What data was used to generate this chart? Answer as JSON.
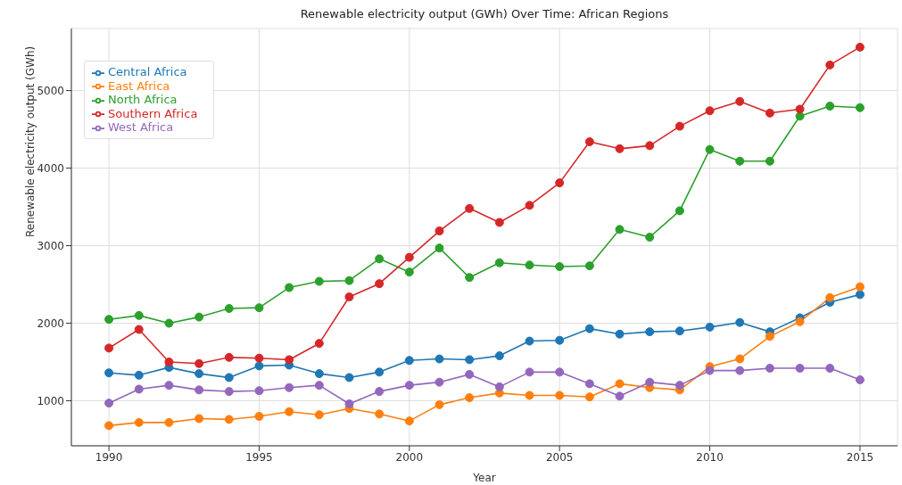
{
  "chart_data": {
    "type": "line",
    "title": "Renewable electricity output (GWh)  Over Time: African Regions",
    "xlabel": "Year",
    "ylabel": "Renewable electricity output (GWh)",
    "x": [
      1990,
      1991,
      1992,
      1993,
      1994,
      1995,
      1996,
      1997,
      1998,
      1999,
      2000,
      2001,
      2002,
      2003,
      2004,
      2005,
      2006,
      2007,
      2008,
      2009,
      2010,
      2011,
      2012,
      2013,
      2014,
      2015
    ],
    "series": [
      {
        "name": "Central Africa",
        "color": "#1f77b4",
        "values": [
          1360,
          1330,
          1430,
          1350,
          1300,
          1450,
          1460,
          1350,
          1300,
          1370,
          1520,
          1540,
          1530,
          1580,
          1770,
          1780,
          1930,
          1860,
          1890,
          1900,
          1950,
          2010,
          1890,
          2070,
          2270,
          2370
        ]
      },
      {
        "name": "East Africa",
        "color": "#ff7f0e",
        "values": [
          680,
          720,
          720,
          770,
          760,
          800,
          860,
          820,
          900,
          830,
          740,
          950,
          1040,
          1100,
          1070,
          1070,
          1050,
          1220,
          1170,
          1140,
          1440,
          1540,
          1830,
          2020,
          2330,
          2470
        ]
      },
      {
        "name": "North Africa",
        "color": "#2ca02c",
        "values": [
          2050,
          2100,
          2000,
          2080,
          2190,
          2200,
          2460,
          2540,
          2550,
          2830,
          2660,
          2970,
          2590,
          2780,
          2750,
          2730,
          2740,
          3210,
          3110,
          3450,
          4240,
          4090,
          4090,
          4670,
          4800,
          4780
        ]
      },
      {
        "name": "Southern Africa",
        "color": "#d62728",
        "values": [
          1680,
          1920,
          1500,
          1480,
          1560,
          1550,
          1530,
          1740,
          2340,
          2510,
          2850,
          3190,
          3480,
          3300,
          3520,
          3810,
          4340,
          4250,
          4290,
          4540,
          4740,
          4860,
          4710,
          4760,
          5330,
          5560
        ]
      },
      {
        "name": "West Africa",
        "color": "#9467bd",
        "values": [
          970,
          1150,
          1200,
          1140,
          1120,
          1130,
          1170,
          1200,
          960,
          1120,
          1200,
          1240,
          1340,
          1180,
          1370,
          1370,
          1220,
          1060,
          1240,
          1200,
          1390,
          1390,
          1420,
          1420,
          1420,
          1270
        ]
      }
    ],
    "xlim": [
      1988.75,
      2016.25
    ],
    "xticks": [
      1990,
      1995,
      2000,
      2005,
      2010,
      2015
    ],
    "ylim": [
      420,
      5800
    ],
    "yticks": [
      1000,
      2000,
      3000,
      4000,
      5000
    ],
    "grid": true,
    "legend": "top left",
    "marker": "circle",
    "line_style": "solid"
  }
}
